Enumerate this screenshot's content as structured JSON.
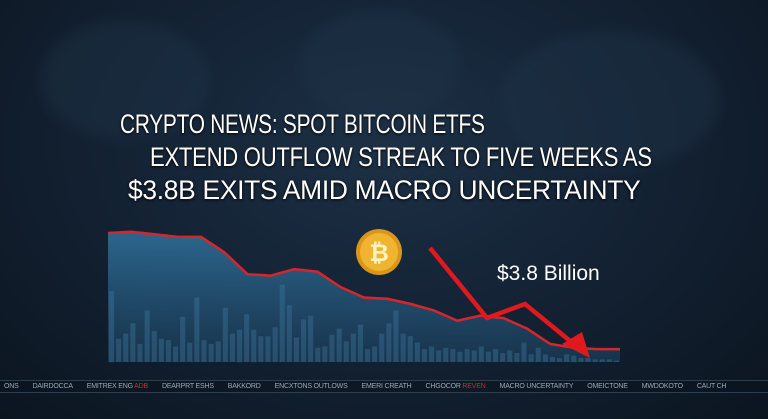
{
  "headline": {
    "line1": "CRYPTO NEWS: SPOT BITCOIN ETFS",
    "line2": "EXTEND OUTFLOW STREAK TO FIVE WEEKS AS",
    "line3": "$3.8B EXITS AMID MACRO UNCERTAINTY"
  },
  "callout": "$3.8 Billion",
  "coin": {
    "symbol": "₿",
    "color": "#e8a21c"
  },
  "colors": {
    "line": "#d6262b",
    "area": "#2d6a93",
    "bars": "#5b9ac4",
    "arrow": "#e0191e",
    "background": "#12202f"
  },
  "ticker": [
    {
      "text": "ONS"
    },
    {
      "text": "DAIRDOCCA"
    },
    {
      "text": "EMITREX ENG",
      "highlight": "ADB"
    },
    {
      "text": "DEARPRT ESHS"
    },
    {
      "text": "BAKKORD"
    },
    {
      "text": "ENCXTONS OUTLOWS"
    },
    {
      "text": "EMERI CREATH"
    },
    {
      "text": "CHGOCOR",
      "highlight": "REVEN"
    },
    {
      "text": "MACRO UNCERTAINTY"
    },
    {
      "text": "OMEICTONE"
    },
    {
      "text": "MWDOKOTO"
    },
    {
      "text": "CAUT CH"
    }
  ],
  "chart_data": {
    "type": "area",
    "title": "",
    "xlabel": "",
    "ylabel": "",
    "grid": false,
    "ylim": [
      0,
      100
    ],
    "line": [
      100,
      101,
      99,
      97,
      97,
      85,
      68,
      67,
      72,
      70,
      58,
      50,
      49,
      45,
      40,
      32,
      36,
      34,
      26,
      14,
      11,
      10,
      10
    ],
    "bars": [
      55,
      18,
      22,
      30,
      14,
      40,
      24,
      18,
      17,
      12,
      35,
      15,
      50,
      17,
      14,
      16,
      42,
      22,
      25,
      37,
      25,
      20,
      20,
      27,
      60,
      44,
      19,
      33,
      36,
      11,
      12,
      21,
      26,
      16,
      22,
      29,
      10,
      12,
      22,
      30,
      40,
      22,
      20,
      15,
      10,
      12,
      9,
      11,
      10,
      8,
      10,
      9,
      12,
      8,
      10,
      7,
      9,
      7,
      15,
      6,
      11,
      6,
      4,
      3,
      6,
      5,
      3,
      3,
      2,
      2,
      2,
      1
    ]
  }
}
